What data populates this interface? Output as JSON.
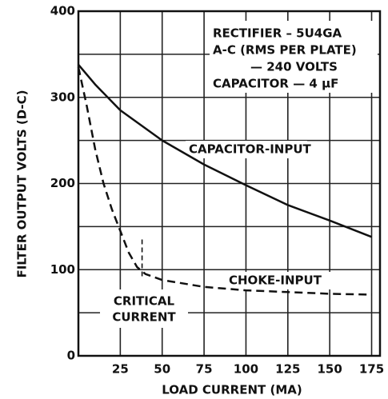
{
  "chart_data": {
    "type": "line",
    "x_label": "LOAD CURRENT (MA)",
    "y_label": "FILTER OUTPUT VOLTS (D-C)",
    "annotation": [
      "RECTIFIER – 5U4GA",
      "A-C (RMS PER PLATE)",
      "— 240 VOLTS",
      "CAPACITOR — 4 µF"
    ],
    "critical_current": {
      "label": [
        "CRITICAL",
        "CURRENT"
      ],
      "x": 38
    },
    "xlim": [
      0,
      180
    ],
    "ylim": [
      0,
      400
    ],
    "xticks": [
      25,
      50,
      75,
      100,
      125,
      150,
      175
    ],
    "yticks": [
      0,
      100,
      200,
      300,
      400
    ],
    "ygrid": [
      50,
      150,
      250,
      350
    ],
    "grid": true,
    "series": [
      {
        "name": "CAPACITOR-INPUT",
        "color": "#111111",
        "dash": false,
        "x": [
          0,
          10,
          25,
          50,
          75,
          100,
          125,
          150,
          175
        ],
        "values": [
          338,
          315,
          285,
          250,
          222,
          198,
          175,
          157,
          138
        ]
      },
      {
        "name": "CHOKE-INPUT",
        "color": "#111111",
        "dash": true,
        "x": [
          0,
          5,
          10,
          15,
          20,
          25,
          30,
          35,
          40,
          50,
          75,
          100,
          125,
          150,
          175
        ],
        "values": [
          335,
          290,
          240,
          200,
          170,
          145,
          120,
          103,
          95,
          88,
          80,
          76,
          74,
          72,
          71
        ]
      }
    ]
  }
}
